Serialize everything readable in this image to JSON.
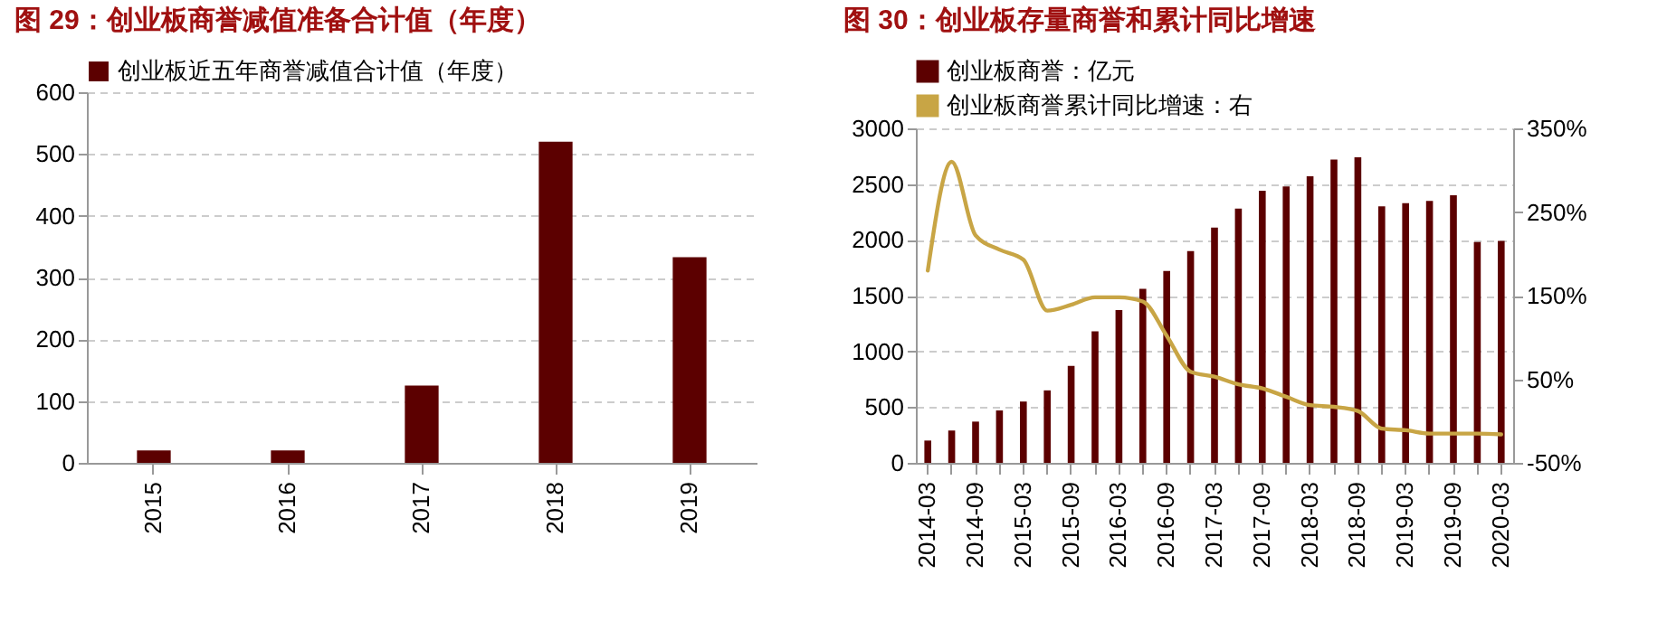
{
  "chart_data": [
    {
      "type": "bar",
      "title": "图 29：创业板商誉减值准备合计值（年度）",
      "categories": [
        "2015",
        "2016",
        "2017",
        "2018",
        "2019"
      ],
      "series": [
        {
          "name": "创业板近五年商誉减值合计值（年度）",
          "color": "#5c0000",
          "values": [
            20,
            20,
            125,
            520,
            333
          ]
        }
      ],
      "ylim": [
        0,
        600
      ],
      "yticks": [
        0,
        100,
        200,
        300,
        400,
        500,
        600
      ],
      "grid": "y",
      "legend": "top"
    },
    {
      "type": "bar",
      "title": "图 30：创业板存量商誉和累计同比增速",
      "categories": [
        "2014-03",
        null,
        "2014-09",
        null,
        "2015-03",
        null,
        "2015-09",
        null,
        "2016-03",
        null,
        "2016-09",
        null,
        "2017-03",
        null,
        "2017-09",
        null,
        "2018-03",
        null,
        "2018-09",
        null,
        "2019-03",
        null,
        "2019-09",
        null,
        "2020-03"
      ],
      "series": [
        {
          "name": "创业板商誉：亿元",
          "color": "#5c0000",
          "values": [
            200,
            290,
            370,
            470,
            550,
            650,
            870,
            1180,
            1370,
            1560,
            1720,
            1900,
            2110,
            2280,
            2440,
            2480,
            2570,
            2720,
            2740,
            2300,
            2330,
            2350,
            2400,
            1980,
            1990
          ]
        },
        {
          "type": "line",
          "axis": "y2",
          "name": "创业板商誉累计同比增速：右",
          "color": "#c8a545",
          "values": [
            180,
            310,
            222,
            205,
            193,
            132,
            139,
            148,
            148,
            143,
            102,
            59,
            53,
            44,
            39,
            29,
            19,
            17,
            12,
            -9,
            -11,
            -15,
            -15,
            -15,
            -16
          ]
        }
      ],
      "ylim": [
        0,
        3000
      ],
      "yticks": [
        0,
        500,
        1000,
        1500,
        2000,
        2500,
        3000
      ],
      "y2lim": [
        -50,
        350
      ],
      "y2ticks": [
        {
          "value": -50,
          "label": "-50%"
        },
        {
          "value": 50,
          "label": "50%"
        },
        {
          "value": 150,
          "label": "150%"
        },
        {
          "value": 250,
          "label": "250%"
        },
        {
          "value": 350,
          "label": "350%"
        }
      ],
      "grid": "y",
      "legend": "top"
    }
  ]
}
